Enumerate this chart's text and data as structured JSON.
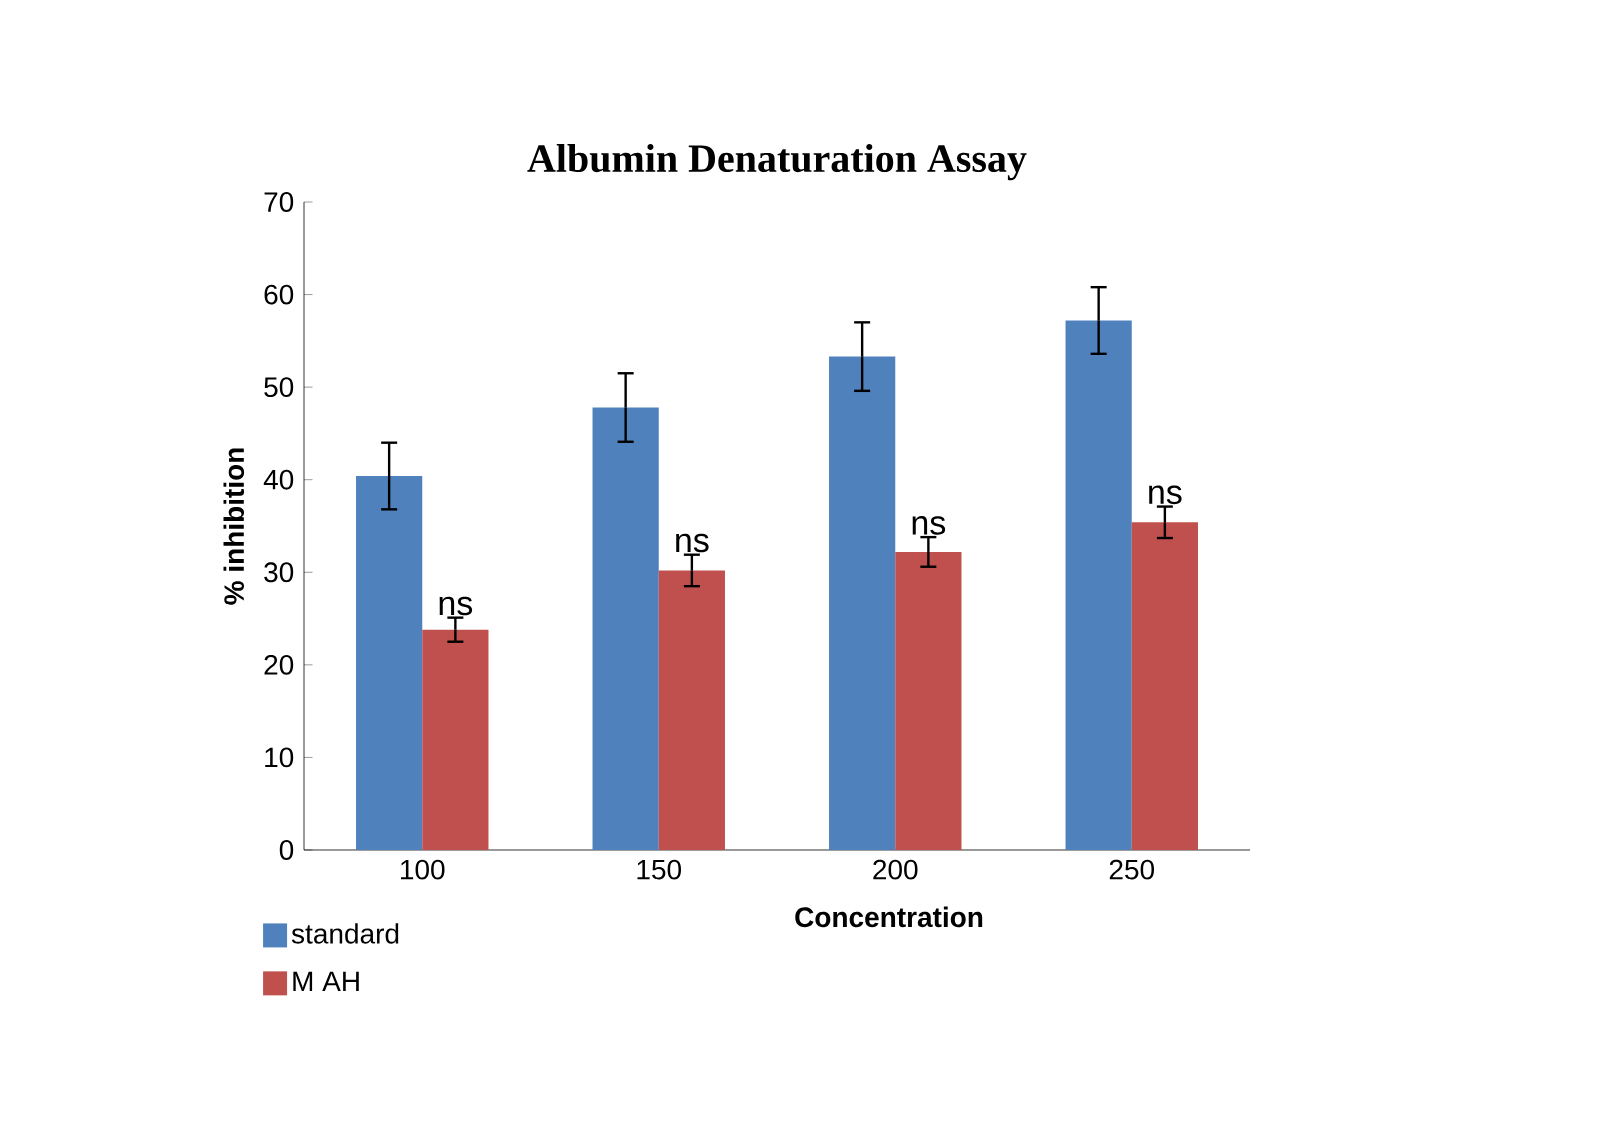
{
  "chart_data": {
    "type": "bar",
    "title": "Albumin Denaturation Assay",
    "xlabel": "Concentration",
    "ylabel": "% inhibition",
    "categories": [
      "100",
      "150",
      "200",
      "250"
    ],
    "series": [
      {
        "name": "standard",
        "color": "#4f81bd",
        "values": [
          40.4,
          47.8,
          53.3,
          57.2
        ],
        "errors": [
          3.6,
          3.7,
          3.7,
          3.6
        ]
      },
      {
        "name": "M AH",
        "color": "#c0504d",
        "values": [
          23.8,
          30.2,
          32.2,
          35.4
        ],
        "errors": [
          1.3,
          1.7,
          1.6,
          1.7
        ]
      }
    ],
    "annotations": [
      {
        "text": "ns",
        "x": "100",
        "y": 25.1
      },
      {
        "text": "ns",
        "x": "150",
        "y": 31.9
      },
      {
        "text": "ns",
        "x": "200",
        "y": 33.8
      },
      {
        "text": "ns",
        "x": "250",
        "y": 37.1
      }
    ],
    "ylim": [
      0,
      70
    ],
    "yticks": [
      0,
      10,
      20,
      30,
      40,
      50,
      60,
      70
    ],
    "grid": false,
    "legend": "bottom left"
  }
}
